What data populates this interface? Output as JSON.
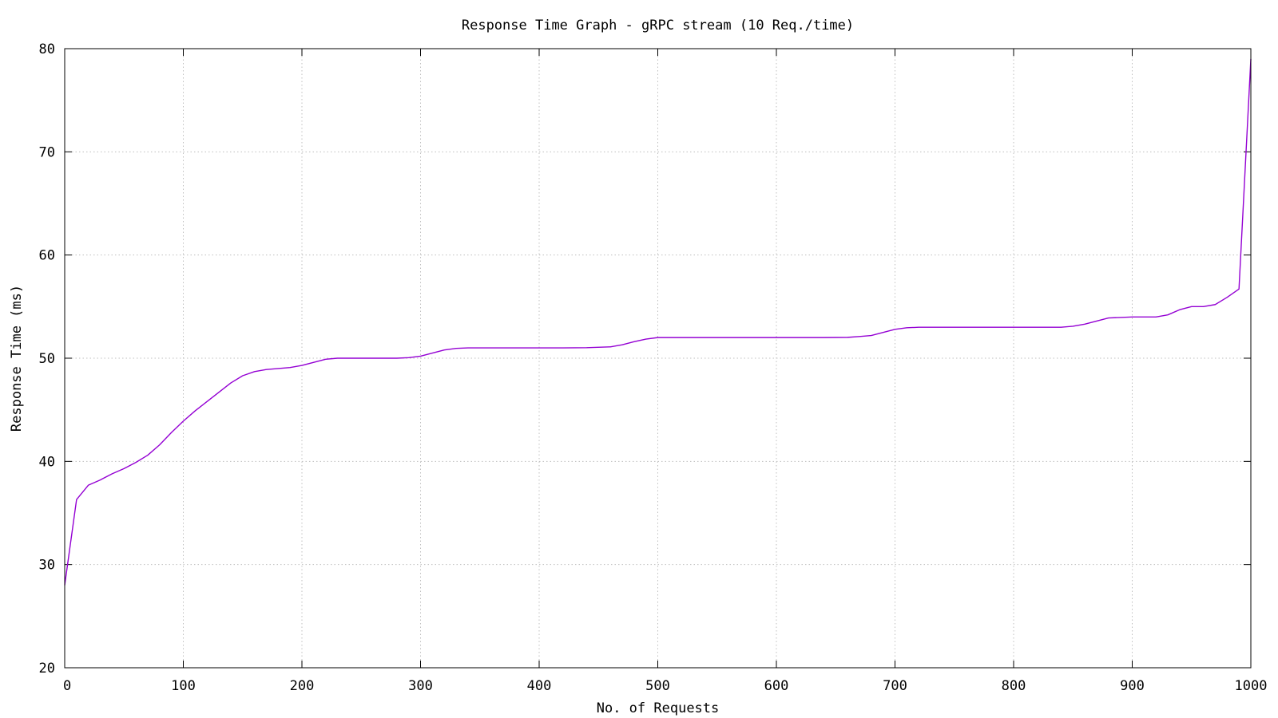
{
  "chart_data": {
    "type": "line",
    "title": "Response Time Graph - gRPC stream (10 Req./time)",
    "xlabel": "No. of Requests",
    "ylabel": "Response Time (ms)",
    "xlim": [
      0,
      1000
    ],
    "ylim": [
      20,
      80
    ],
    "x_ticks": [
      0,
      100,
      200,
      300,
      400,
      500,
      600,
      700,
      800,
      900,
      1000
    ],
    "x_tick_labels": [
      "0",
      "100",
      "200",
      "300",
      "400",
      "500",
      "600",
      "700",
      "800",
      "900",
      "1000"
    ],
    "y_ticks": [
      20,
      30,
      40,
      50,
      60,
      70,
      80
    ],
    "y_tick_labels": [
      "20",
      "30",
      "40",
      "50",
      "60",
      "70",
      "80"
    ],
    "grid": true,
    "legend": "none",
    "series": [
      {
        "color": "#9400d3",
        "x": [
          0,
          10,
          20,
          30,
          40,
          50,
          60,
          70,
          80,
          90,
          100,
          110,
          120,
          130,
          140,
          150,
          160,
          170,
          180,
          190,
          200,
          210,
          220,
          230,
          240,
          250,
          260,
          270,
          280,
          290,
          300,
          310,
          320,
          330,
          340,
          350,
          360,
          380,
          400,
          420,
          440,
          460,
          470,
          480,
          490,
          500,
          510,
          520,
          540,
          560,
          580,
          600,
          620,
          640,
          660,
          670,
          680,
          690,
          700,
          710,
          720,
          740,
          760,
          780,
          800,
          820,
          840,
          850,
          860,
          870,
          880,
          900,
          920,
          930,
          940,
          950,
          960,
          970,
          980,
          990,
          1000
        ],
        "y": [
          28.0,
          36.3,
          37.7,
          38.2,
          38.8,
          39.3,
          39.9,
          40.6,
          41.6,
          42.8,
          43.9,
          44.9,
          45.8,
          46.7,
          47.6,
          48.3,
          48.7,
          48.9,
          49.0,
          49.1,
          49.3,
          49.6,
          49.9,
          50.0,
          50.0,
          50.0,
          50.0,
          50.0,
          50.0,
          50.05,
          50.2,
          50.5,
          50.8,
          50.95,
          51.0,
          51.0,
          51.0,
          51.0,
          51.0,
          51.0,
          51.02,
          51.1,
          51.3,
          51.6,
          51.85,
          52.0,
          52.0,
          52.0,
          52.0,
          52.0,
          52.0,
          52.0,
          52.0,
          52.0,
          52.02,
          52.1,
          52.2,
          52.5,
          52.8,
          52.95,
          53.0,
          53.0,
          53.0,
          53.0,
          53.0,
          53.0,
          53.0,
          53.1,
          53.3,
          53.6,
          53.9,
          54.0,
          54.0,
          54.2,
          54.7,
          55.0,
          55.0,
          55.2,
          55.9,
          56.7,
          79.0
        ]
      }
    ]
  }
}
